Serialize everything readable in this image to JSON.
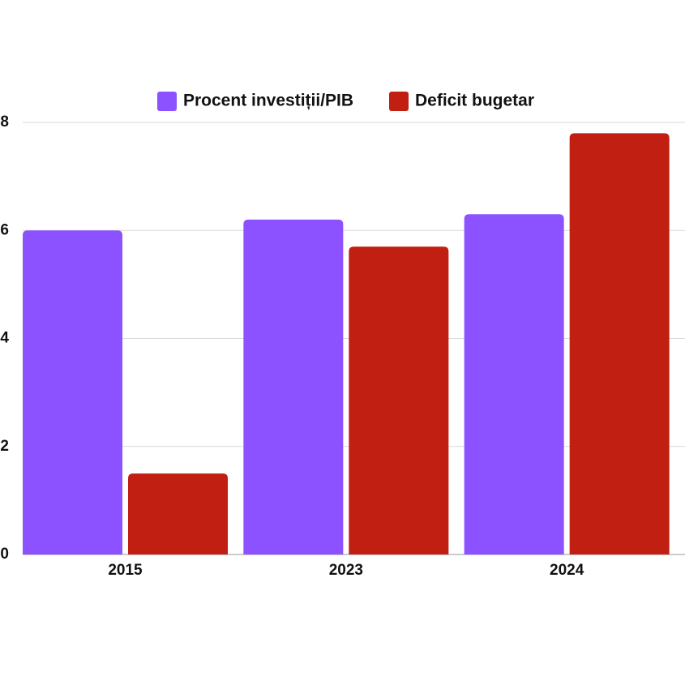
{
  "chart_data": {
    "type": "bar",
    "categories": [
      "2015",
      "2023",
      "2024"
    ],
    "series": [
      {
        "name": "Procent investiții/PIB",
        "color": "#8c52ff",
        "values": [
          6.0,
          6.2,
          6.3
        ]
      },
      {
        "name": "Deficit bugetar",
        "color": "#c01f12",
        "values": [
          1.5,
          5.7,
          7.8
        ]
      }
    ],
    "ylim": [
      0,
      8
    ],
    "yticks": [
      0,
      2,
      4,
      6,
      8
    ],
    "grid": true,
    "legend": "top"
  }
}
